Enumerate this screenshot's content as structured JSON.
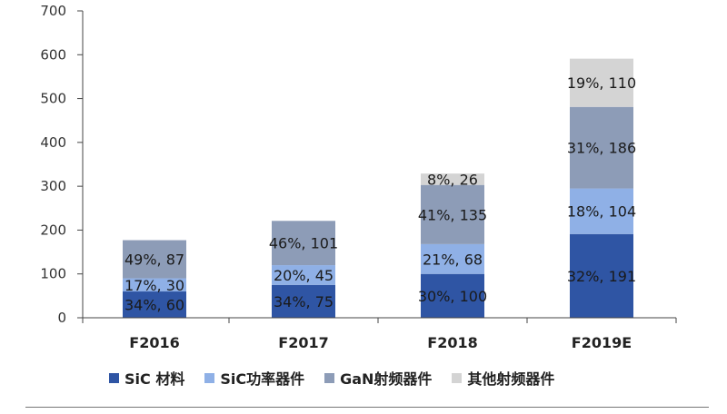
{
  "chart_data": {
    "type": "bar",
    "stacked": true,
    "title": "",
    "xlabel": "",
    "ylabel": "",
    "ylim": [
      0,
      700
    ],
    "yticks": [
      0,
      100,
      200,
      300,
      400,
      500,
      600,
      700
    ],
    "categories": [
      "F2016",
      "F2017",
      "F2018",
      "F2019E"
    ],
    "series": [
      {
        "name": "SiC 材料",
        "color": "#2f55a4",
        "values": [
          60,
          75,
          100,
          191
        ],
        "labels": [
          "34%, 60",
          "34%, 75",
          "30%, 100",
          "32%, 191"
        ]
      },
      {
        "name": "SiC功率器件",
        "color": "#8fb0e6",
        "values": [
          30,
          45,
          68,
          104
        ],
        "labels": [
          "17%, 30",
          "20%, 45",
          "21%, 68",
          "18%, 104"
        ]
      },
      {
        "name": "GaN射频器件",
        "color": "#8d9cb7",
        "values": [
          87,
          101,
          135,
          186
        ],
        "labels": [
          "49%, 87",
          "46%, 101",
          "41%, 135",
          "31%, 186"
        ]
      },
      {
        "name": "其他射频器件",
        "color": "#d4d4d4",
        "values": [
          0,
          0,
          26,
          110
        ],
        "labels": [
          "",
          "",
          "8%, 26",
          "19%, 110"
        ]
      }
    ],
    "grid": false,
    "legend_position": "bottom"
  }
}
